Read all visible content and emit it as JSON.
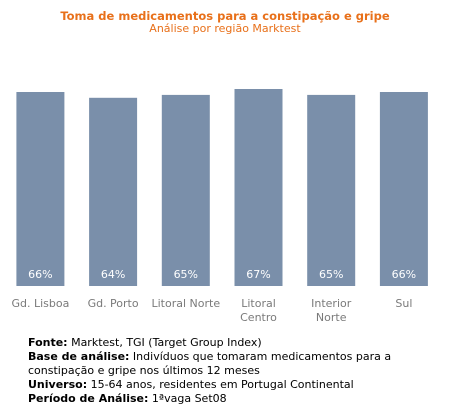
{
  "chart_data": {
    "type": "bar",
    "title": "Toma de medicamentos para a constipação e gripe",
    "subtitle": "Análise por região Marktest",
    "categories": [
      [
        "Gd. Lisboa"
      ],
      [
        "Gd. Porto"
      ],
      [
        "Litoral Norte"
      ],
      [
        "Litoral",
        "Centro"
      ],
      [
        "Interior",
        "Norte"
      ],
      [
        "Sul"
      ]
    ],
    "values": [
      66,
      64,
      65,
      67,
      65,
      66
    ],
    "value_labels": [
      "66%",
      "64%",
      "65%",
      "67%",
      "65%",
      "66%"
    ],
    "unit": "%",
    "grid": false,
    "legend": "none",
    "bar_color": "#7a8faa"
  },
  "source": {
    "fonte_label": "Fonte:",
    "fonte_text": " Marktest, TGI (Target Group Index)",
    "base_label": "Base de análise:",
    "base_text": " Indivíduos que tomaram medicamentos para a constipação e gripe nos últimos 12 meses",
    "universo_label": "Universo:",
    "universo_text": " 15-64 anos, residentes em Portugal Continental",
    "periodo_label": "Período de Análise:",
    "periodo_text": " 1ªvaga Set08"
  }
}
